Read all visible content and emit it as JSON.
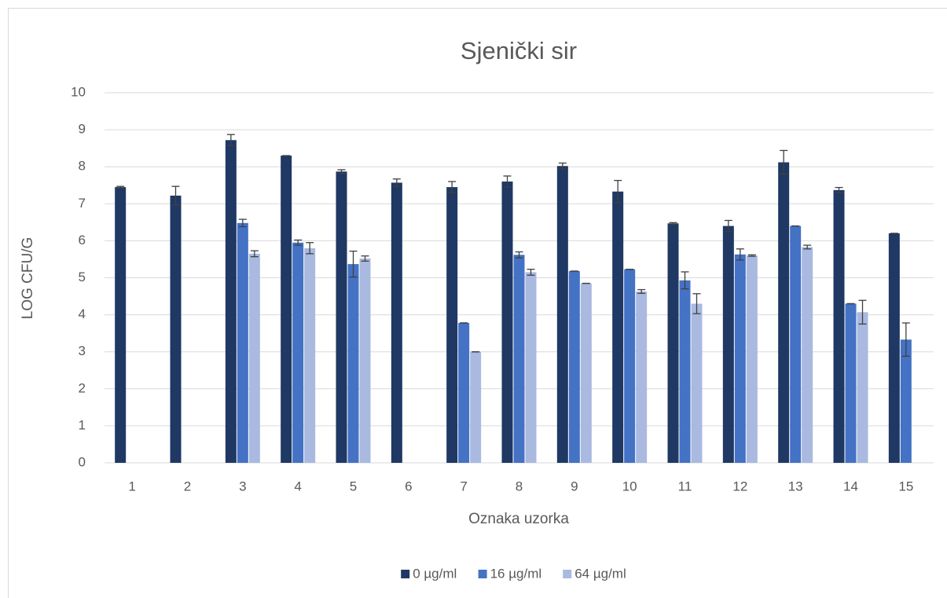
{
  "chart_data": {
    "type": "bar",
    "title": "Sjenički sir",
    "x_label": "Oznaka uzorka",
    "y_label": "LOG CFU/G",
    "categories": [
      "1",
      "2",
      "3",
      "4",
      "5",
      "6",
      "7",
      "8",
      "9",
      "10",
      "11",
      "12",
      "13",
      "14",
      "15"
    ],
    "series": [
      {
        "name": "0 µg/ml",
        "color": "#1f3864",
        "values": [
          7.45,
          7.22,
          8.72,
          8.3,
          7.87,
          7.57,
          7.45,
          7.6,
          8.02,
          7.33,
          6.47,
          6.4,
          8.12,
          7.37,
          6.2
        ],
        "errors": [
          0.02,
          0.25,
          0.15,
          0,
          0.05,
          0.1,
          0.15,
          0.15,
          0.08,
          0.3,
          0.02,
          0.15,
          0.32,
          0.07,
          0
        ]
      },
      {
        "name": "16 µg/ml",
        "color": "#4472c4",
        "values": [
          null,
          null,
          6.48,
          5.95,
          5.37,
          null,
          3.78,
          5.62,
          5.18,
          5.23,
          4.93,
          5.63,
          6.4,
          4.3,
          3.33
        ],
        "errors": [
          null,
          null,
          0.1,
          0.07,
          0.35,
          null,
          0,
          0.08,
          0,
          0,
          0.23,
          0.15,
          0,
          0,
          0.45
        ]
      },
      {
        "name": "64 µg/ml",
        "color": "#a9b9e0",
        "values": [
          null,
          null,
          5.65,
          5.8,
          5.52,
          null,
          3.0,
          5.15,
          4.85,
          4.63,
          4.3,
          5.6,
          5.83,
          4.07,
          null
        ],
        "errors": [
          null,
          null,
          0.08,
          0.15,
          0.07,
          null,
          0,
          0.08,
          0,
          0.05,
          0.27,
          0.02,
          0.05,
          0.32,
          null
        ]
      }
    ],
    "ylim": [
      0,
      10
    ],
    "yticks": [
      0,
      1,
      2,
      3,
      4,
      5,
      6,
      7,
      8,
      9,
      10
    ],
    "grid": true,
    "legend": "bottom"
  }
}
